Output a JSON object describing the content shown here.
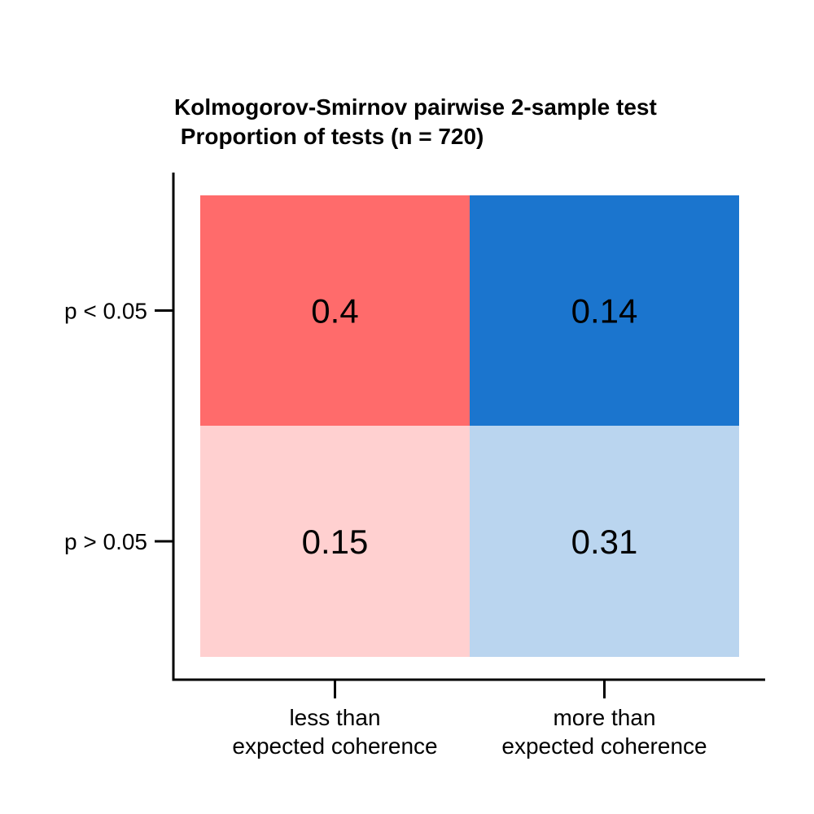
{
  "chart_data": {
    "type": "heatmap",
    "title": "Kolmogorov-Smirnov pairwise 2-sample test",
    "subtitle": " Proportion of tests (n = 720)",
    "x_categories": [
      [
        "less than",
        "expected coherence"
      ],
      [
        "more than",
        "expected coherence"
      ]
    ],
    "y_categories": [
      "p < 0.05",
      "p > 0.05"
    ],
    "cells": [
      {
        "x": 0,
        "y": 0,
        "value": 0.4,
        "label": "0.4",
        "color": "#FF6B6B"
      },
      {
        "x": 1,
        "y": 0,
        "value": 0.14,
        "label": "0.14",
        "color": "#1B75CE"
      },
      {
        "x": 0,
        "y": 1,
        "value": 0.15,
        "label": "0.15",
        "color": "#FFD0D0"
      },
      {
        "x": 1,
        "y": 1,
        "value": 0.31,
        "label": "0.31",
        "color": "#BAD5EF"
      }
    ],
    "xlabel": "",
    "ylabel": "",
    "grid": false,
    "legend": "none"
  }
}
